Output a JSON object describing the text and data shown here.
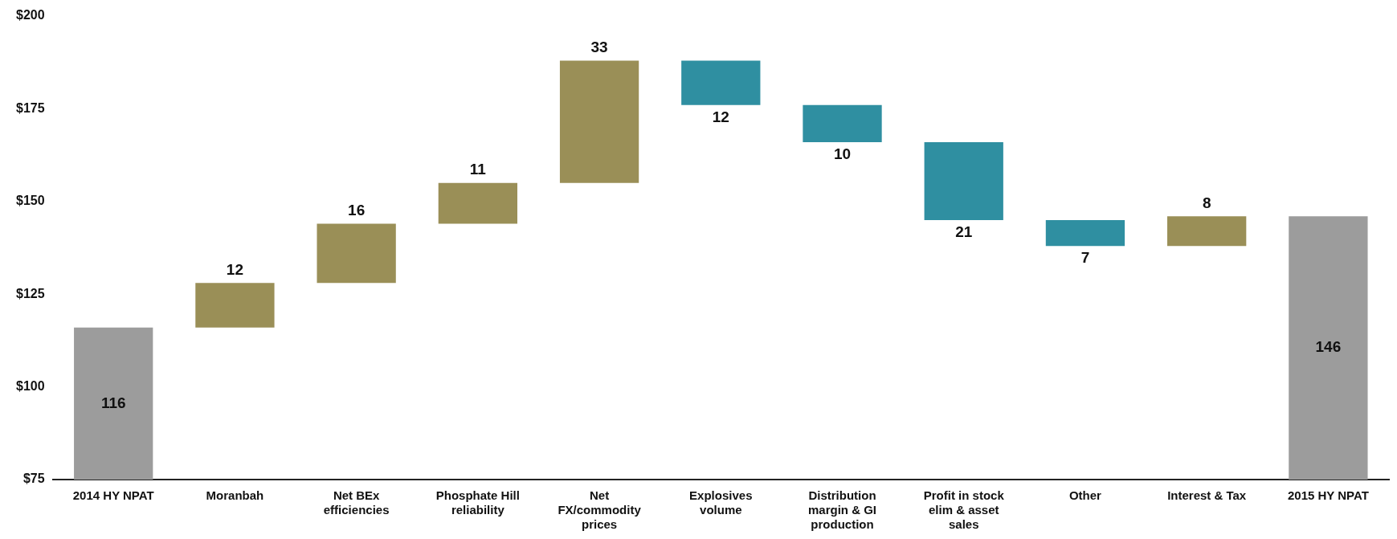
{
  "chart_data": {
    "type": "bar",
    "categories": [
      "2014 HY NPAT",
      "Moranbah",
      "Net BEx efficiencies",
      "Phosphate Hill reliability",
      "Net FX/commodity prices",
      "Explosives volume",
      "Distribution margin & GI production",
      "Profit in stock elim & asset sales",
      "Other",
      "Interest & Tax",
      "2015 HY NPAT"
    ],
    "values": [
      116,
      12,
      16,
      11,
      33,
      -12,
      -10,
      -21,
      -7,
      8,
      146
    ],
    "base": [
      null,
      116,
      128,
      144,
      155,
      188,
      176,
      166,
      145,
      138,
      null
    ],
    "colors": [
      "#9c9c9c",
      "#9a8f57",
      "#9a8f57",
      "#9a8f57",
      "#9a8f57",
      "#2f8fa1",
      "#2f8fa1",
      "#2f8fa1",
      "#2f8fa1",
      "#9a8f57",
      "#9c9c9c"
    ],
    "value_labels": [
      "116",
      "12",
      "16",
      "11",
      "33",
      "12",
      "10",
      "21",
      "7",
      "8",
      "146"
    ],
    "ylim": [
      75,
      200
    ],
    "yticks": [
      {
        "value": 75,
        "label": "$75"
      },
      {
        "value": 100,
        "label": "$100"
      },
      {
        "value": 125,
        "label": "$125"
      },
      {
        "value": 150,
        "label": "$150"
      },
      {
        "value": 175,
        "label": "$175"
      },
      {
        "value": 200,
        "label": "$200"
      }
    ],
    "grid": false,
    "legend": false
  }
}
